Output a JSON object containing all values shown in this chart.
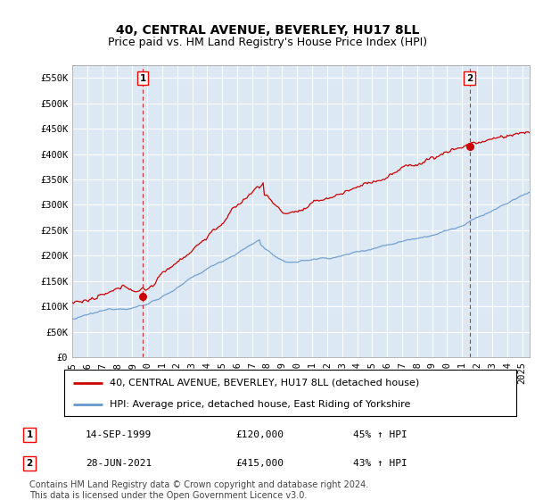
{
  "title": "40, CENTRAL AVENUE, BEVERLEY, HU17 8LL",
  "subtitle": "Price paid vs. HM Land Registry's House Price Index (HPI)",
  "ylabel_ticks": [
    "£0",
    "£50K",
    "£100K",
    "£150K",
    "£200K",
    "£250K",
    "£300K",
    "£350K",
    "£400K",
    "£450K",
    "£500K",
    "£550K"
  ],
  "ytick_vals": [
    0,
    50000,
    100000,
    150000,
    200000,
    250000,
    300000,
    350000,
    400000,
    450000,
    500000,
    550000
  ],
  "ylim": [
    0,
    575000
  ],
  "xlim_start": 1995.0,
  "xlim_end": 2025.5,
  "marker1_x": 1999.71,
  "marker1_y": 120000,
  "marker2_x": 2021.49,
  "marker2_y": 415000,
  "marker1_label": "1",
  "marker2_label": "2",
  "marker1_date": "14-SEP-1999",
  "marker1_price": "£120,000",
  "marker1_hpi": "45% ↑ HPI",
  "marker2_date": "28-JUN-2021",
  "marker2_price": "£415,000",
  "marker2_hpi": "43% ↑ HPI",
  "line1_label": "40, CENTRAL AVENUE, BEVERLEY, HU17 8LL (detached house)",
  "line2_label": "HPI: Average price, detached house, East Riding of Yorkshire",
  "line1_color": "#cc0000",
  "line2_color": "#6699cc",
  "footnote": "Contains HM Land Registry data © Crown copyright and database right 2024.\nThis data is licensed under the Open Government Licence v3.0.",
  "background_color": "#ffffff",
  "plot_bg_color": "#dce9f5",
  "grid_color": "#ffffff",
  "title_fontsize": 10,
  "subtitle_fontsize": 9,
  "tick_fontsize": 7.5,
  "legend_fontsize": 8,
  "footnote_fontsize": 7
}
